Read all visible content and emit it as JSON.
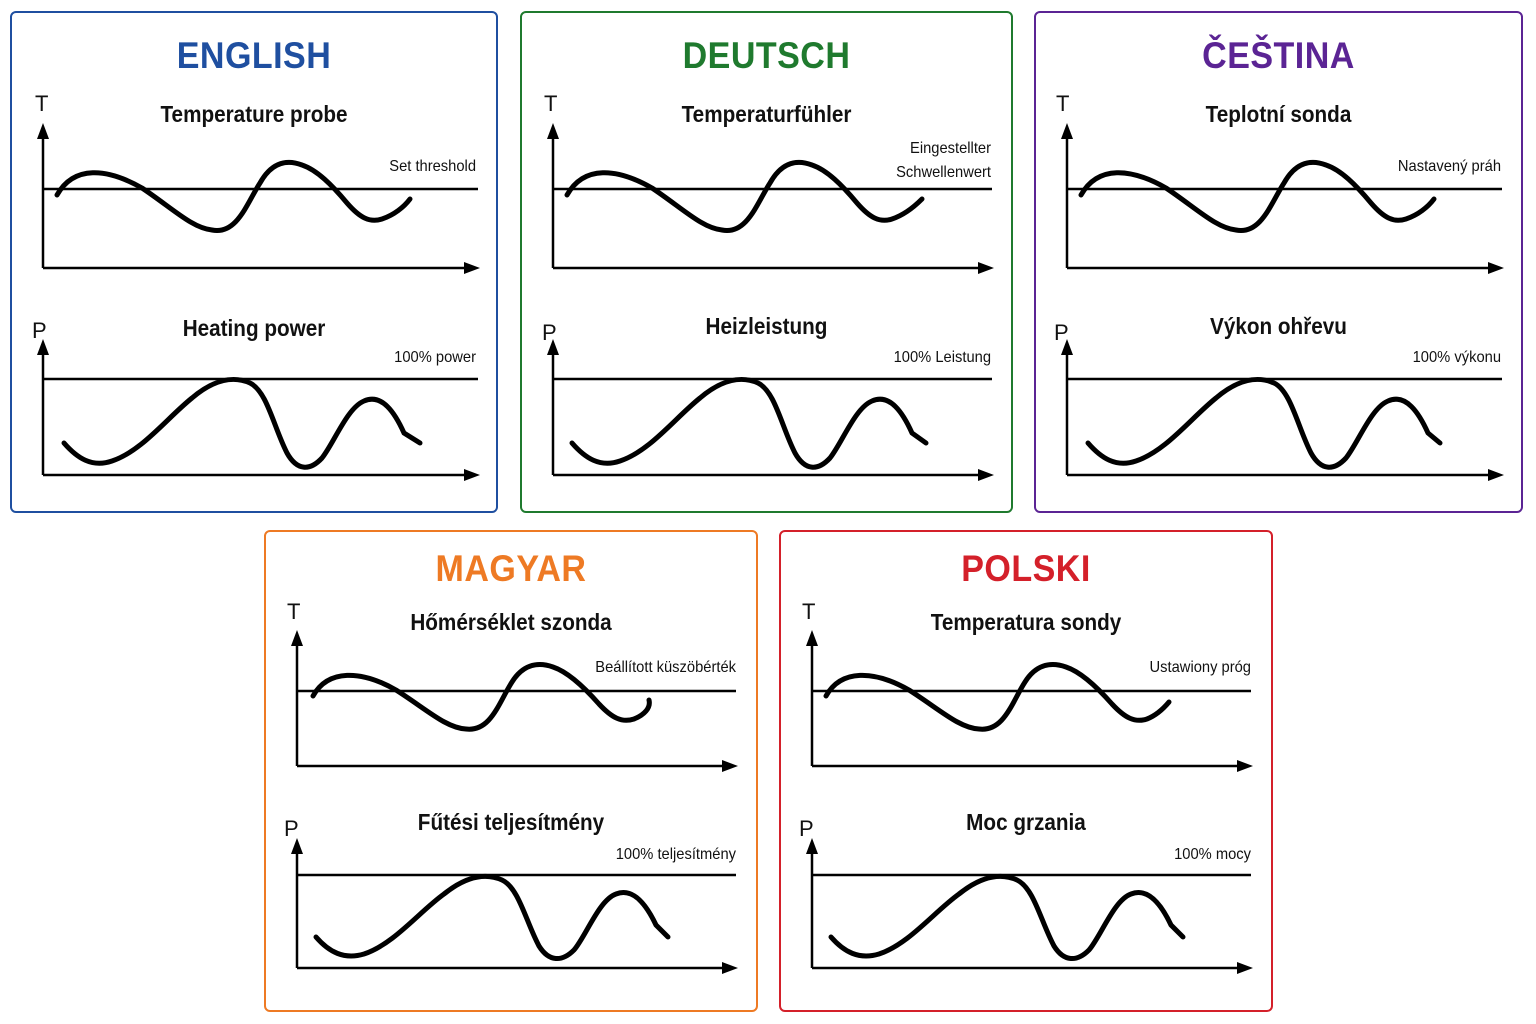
{
  "panels": [
    {
      "id": "en",
      "language": "ENGLISH",
      "color": "#1f4fa0",
      "temperature_title": "Temperature probe",
      "threshold_label": "Set threshold",
      "power_title": "Heating power",
      "full_power_label": "100% power"
    },
    {
      "id": "de",
      "language": "DEUTSCH",
      "color": "#1f7a2e",
      "temperature_title": "Temperaturfühler",
      "threshold_label": "Eingestellter Schwellenwert",
      "power_title": "Heizleistung",
      "full_power_label": "100% Leistung"
    },
    {
      "id": "cs",
      "language": "ČEŠTINA",
      "color": "#5b2494",
      "temperature_title": "Teplotní sonda",
      "threshold_label": "Nastavený práh",
      "power_title": "Výkon ohřevu",
      "full_power_label": "100% výkonu"
    },
    {
      "id": "hu",
      "language": "MAGYAR",
      "color": "#ee7a24",
      "temperature_title": "Hőmérséklet szonda",
      "threshold_label": "Beállított küszöbérték",
      "power_title": "Fűtési teljesítmény",
      "full_power_label": "100% teljesítmény"
    },
    {
      "id": "pl",
      "language": "POLSKI",
      "color": "#d4202a",
      "temperature_title": "Temperatura sondy",
      "threshold_label": "Ustawiony próg",
      "power_title": "Moc grzania",
      "full_power_label": "100% mocy"
    }
  ],
  "axis_labels": {
    "temperature": "T",
    "power": "P"
  }
}
